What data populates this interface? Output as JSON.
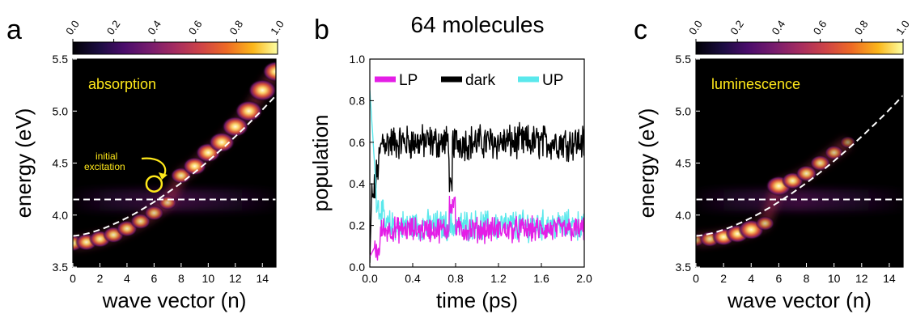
{
  "chart_data": [
    {
      "panel": "a",
      "type": "heatmap",
      "annotation": "absorption",
      "callout": [
        "initial",
        "excitation"
      ],
      "xlabel": "wave vector (n)",
      "ylabel": "energy (eV)",
      "xlim": [
        0,
        15
      ],
      "ylim": [
        3.5,
        5.5
      ],
      "x_ticks": [
        "0",
        "2",
        "4",
        "6",
        "8",
        "10",
        "12",
        "14"
      ],
      "y_ticks": [
        "3.5",
        "4.0",
        "4.5",
        "5.0",
        "5.5"
      ],
      "colorbar": {
        "ticks": [
          "0.0",
          "0.2",
          "0.4",
          "0.6",
          "0.8",
          "1.0"
        ],
        "range": [
          0,
          1
        ],
        "colormap": "inferno"
      },
      "exciton_energy": 4.15,
      "photon_dispersion_dashed": true,
      "bright_spots": [
        {
          "n": 0,
          "e": 3.73,
          "i": 0.55
        },
        {
          "n": 1,
          "e": 3.74,
          "i": 0.6
        },
        {
          "n": 2,
          "e": 3.77,
          "i": 0.6
        },
        {
          "n": 3,
          "e": 3.81,
          "i": 0.55
        },
        {
          "n": 4,
          "e": 3.87,
          "i": 0.55
        },
        {
          "n": 5,
          "e": 3.94,
          "i": 0.5
        },
        {
          "n": 6,
          "e": 4.02,
          "i": 0.45
        },
        {
          "n": 7,
          "e": 4.12,
          "i": 0.4
        },
        {
          "n": 8,
          "e": 4.38,
          "i": 0.55
        },
        {
          "n": 9,
          "e": 4.47,
          "i": 0.7
        },
        {
          "n": 10,
          "e": 4.6,
          "i": 0.8
        },
        {
          "n": 11,
          "e": 4.7,
          "i": 0.85
        },
        {
          "n": 12,
          "e": 4.85,
          "i": 0.9
        },
        {
          "n": 13,
          "e": 5.0,
          "i": 0.95
        },
        {
          "n": 14,
          "e": 5.2,
          "i": 1.0
        },
        {
          "n": 15,
          "e": 5.38,
          "i": 0.9
        }
      ],
      "initial_excitation_marker": {
        "n": 6,
        "e": 4.3
      }
    },
    {
      "panel": "b",
      "type": "line",
      "title": "64 molecules",
      "xlabel": "time (ps)",
      "ylabel": "population",
      "xlim": [
        0.0,
        2.0
      ],
      "ylim": [
        0.0,
        1.0
      ],
      "x_ticks": [
        "0.0",
        "0.4",
        "0.8",
        "1.2",
        "1.6",
        "2.0"
      ],
      "y_ticks": [
        "0.0",
        "0.2",
        "0.4",
        "0.6",
        "0.8",
        "1.0"
      ],
      "legend_position": "top",
      "series": [
        {
          "name": "LP",
          "color": "#e41ee6",
          "mean": 0.18,
          "spread": 0.05
        },
        {
          "name": "dark",
          "color": "#000000",
          "mean": 0.6,
          "spread": 0.07
        },
        {
          "name": "UP",
          "color": "#5ae8ec",
          "mean": 0.2,
          "spread": 0.06
        }
      ]
    },
    {
      "panel": "c",
      "type": "heatmap",
      "annotation": "luminescence",
      "xlabel": "wave vector (n)",
      "ylabel": "energy (eV)",
      "xlim": [
        0,
        15
      ],
      "ylim": [
        3.5,
        5.5
      ],
      "x_ticks": [
        "0",
        "2",
        "4",
        "6",
        "8",
        "10",
        "12",
        "14"
      ],
      "y_ticks": [
        "3.5",
        "4.0",
        "4.5",
        "5.0",
        "5.5"
      ],
      "colorbar": {
        "ticks": [
          "0.0",
          "0.2",
          "0.4",
          "0.6",
          "0.8",
          "1.0"
        ],
        "range": [
          0,
          1
        ],
        "colormap": "inferno"
      },
      "exciton_energy": 4.15,
      "photon_dispersion_dashed": true,
      "bright_spots": [
        {
          "n": 0,
          "e": 3.76,
          "i": 0.3
        },
        {
          "n": 1,
          "e": 3.77,
          "i": 0.5
        },
        {
          "n": 2,
          "e": 3.79,
          "i": 0.65
        },
        {
          "n": 3,
          "e": 3.82,
          "i": 0.7
        },
        {
          "n": 4,
          "e": 3.86,
          "i": 0.85
        },
        {
          "n": 5,
          "e": 3.92,
          "i": 0.4
        },
        {
          "n": 6,
          "e": 4.28,
          "i": 0.85
        },
        {
          "n": 7,
          "e": 4.33,
          "i": 0.6
        },
        {
          "n": 8,
          "e": 4.4,
          "i": 0.55
        },
        {
          "n": 9,
          "e": 4.5,
          "i": 0.5
        },
        {
          "n": 10,
          "e": 4.6,
          "i": 0.4
        },
        {
          "n": 11,
          "e": 4.7,
          "i": 0.2
        }
      ]
    }
  ]
}
